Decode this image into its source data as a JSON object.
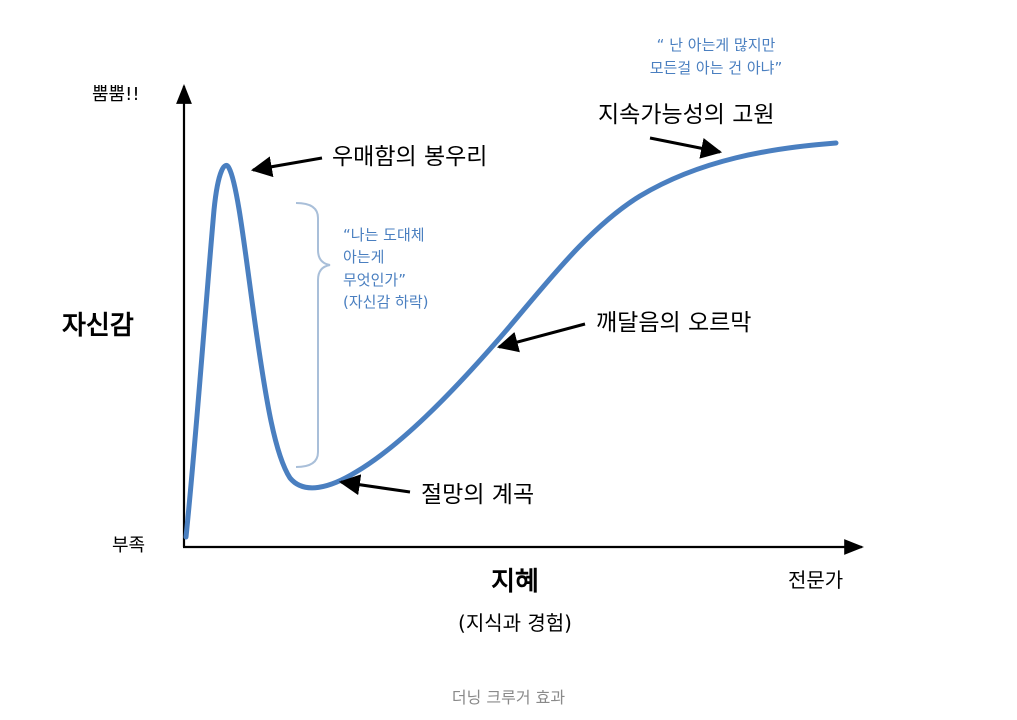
{
  "figure": {
    "y_axis": {
      "top_label": "뿜뿜!!",
      "title": "자신감",
      "bottom_label": "부족"
    },
    "x_axis": {
      "title": "지혜",
      "subtitle": "(지식과 경험)",
      "end_label": "전문가"
    },
    "stages": {
      "peak": "우매함의 봉우리",
      "valley": "절망의 계곡",
      "slope": "깨달음의 오르막",
      "plateau": "지속가능성의 고원"
    },
    "quotes": {
      "drop": {
        "lines": [
          "“나는 도대체",
          "아는게",
          "무엇인가”",
          "(자신감 하락)"
        ]
      },
      "expert": {
        "lines": [
          "“ 난 아는게 많지만",
          "모든걸 아는 건 아냐”"
        ]
      }
    },
    "caption": "더닝 크루거 효과"
  },
  "colors": {
    "curve": "#4a7fc0",
    "quote_text": "#4a7fc0",
    "bracket": "#a9bfd9",
    "axis": "#000000",
    "caption": "#8a8a8a"
  }
}
